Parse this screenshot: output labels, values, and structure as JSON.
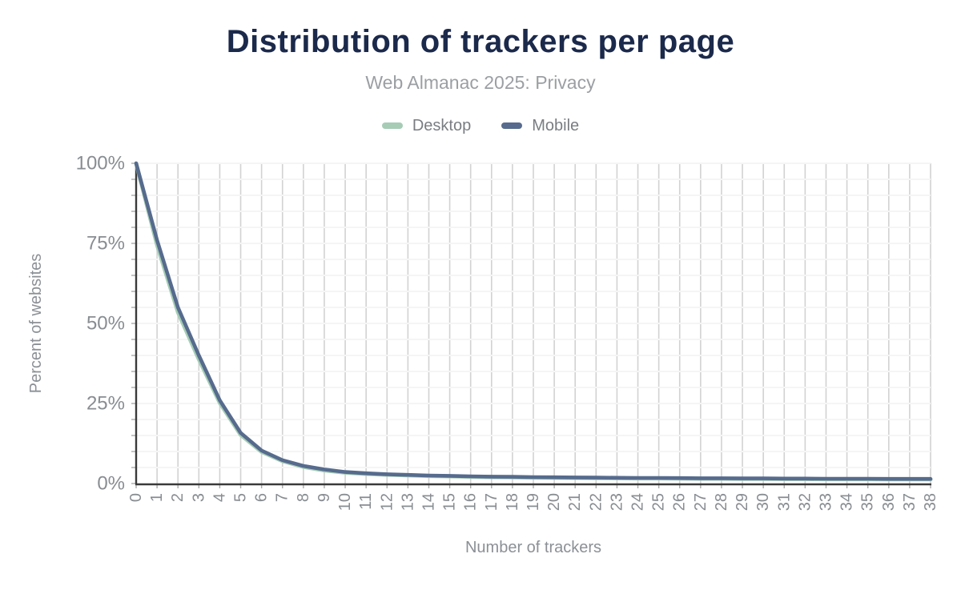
{
  "header": {
    "title": "Distribution of trackers per page",
    "subtitle": "Web Almanac 2025: Privacy"
  },
  "chart_data": {
    "type": "line",
    "title": "Distribution of trackers per page",
    "subtitle": "Web Almanac 2025: Privacy",
    "xlabel": "Number of trackers",
    "ylabel": "Percent of websites",
    "x": [
      0,
      1,
      2,
      3,
      4,
      5,
      6,
      7,
      8,
      9,
      10,
      11,
      12,
      13,
      14,
      15,
      16,
      17,
      18,
      19,
      20,
      21,
      22,
      23,
      24,
      25,
      26,
      27,
      28,
      29,
      30,
      31,
      32,
      33,
      34,
      35,
      36,
      37,
      38
    ],
    "series": [
      {
        "name": "Desktop",
        "color": "#a6ccb5",
        "values": [
          100,
          74.5,
          53.5,
          38.8,
          25.2,
          15.2,
          9.9,
          7.0,
          5.2,
          4.1,
          3.4,
          3.0,
          2.75,
          2.55,
          2.35,
          2.25,
          2.1,
          2.0,
          1.95,
          1.85,
          1.8,
          1.75,
          1.7,
          1.65,
          1.6,
          1.6,
          1.55,
          1.5,
          1.5,
          1.45,
          1.45,
          1.4,
          1.4,
          1.35,
          1.35,
          1.35,
          1.3,
          1.3,
          1.3
        ]
      },
      {
        "name": "Mobile",
        "color": "#566b8d",
        "values": [
          100,
          76,
          55,
          40,
          26,
          15.8,
          10.3,
          7.3,
          5.5,
          4.4,
          3.6,
          3.2,
          2.9,
          2.7,
          2.5,
          2.4,
          2.25,
          2.15,
          2.1,
          2.0,
          1.95,
          1.9,
          1.85,
          1.8,
          1.75,
          1.75,
          1.7,
          1.65,
          1.65,
          1.6,
          1.6,
          1.55,
          1.55,
          1.5,
          1.5,
          1.5,
          1.45,
          1.45,
          1.45
        ]
      }
    ],
    "ylim": [
      0,
      100
    ],
    "ytick_values": [
      0,
      25,
      50,
      75,
      100
    ],
    "ytick_labels": [
      "0%",
      "25%",
      "50%",
      "75%",
      "100%"
    ],
    "grid": {
      "vertical_every_x": true,
      "horizontal_step_percent": 5
    },
    "legend_position": "top"
  },
  "colors": {
    "title": "#1b294b",
    "subtitle": "#9b9fa3",
    "axis_line": "#3a3a3a",
    "grid_vertical": "#d2d2d2",
    "grid_horizontal": "#f5f5f5",
    "tick_mark": "#aaaaaa",
    "tick_label": "#888d92",
    "axis_title": "#8b9096",
    "desktop": "#a6ccb5",
    "mobile": "#566b8d"
  }
}
